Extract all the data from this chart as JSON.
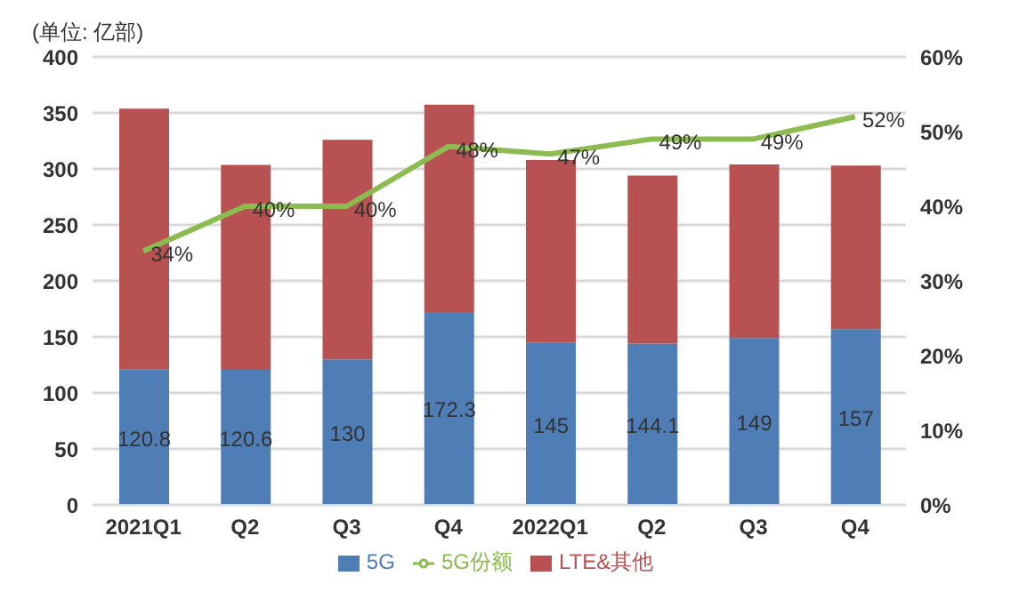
{
  "chart_data": {
    "type": "bar",
    "ylabel": "(单位: 亿部)",
    "categories": [
      "2021Q1",
      "Q2",
      "Q3",
      "Q4",
      "2022Q1",
      "Q2",
      "Q3",
      "Q4"
    ],
    "stacked": true,
    "series": [
      {
        "name": "5G",
        "color": "#4f7db5",
        "values": [
          120.8,
          120.6,
          130,
          172.3,
          145,
          144.1,
          149,
          157
        ],
        "value_labels": [
          "120.8",
          "120.6",
          "130",
          "172.3",
          "145",
          "144.1",
          "149",
          "157"
        ]
      },
      {
        "name": "LTE&其他",
        "color": "#b85152",
        "values": [
          233,
          183,
          196,
          185,
          163,
          150,
          155,
          146
        ]
      },
      {
        "name": "5G份额",
        "type": "line",
        "axis": "y2",
        "color": "#8cbb50",
        "values": [
          34,
          40,
          40,
          48,
          47,
          49,
          49,
          52
        ],
        "value_labels": [
          "34%",
          "40%",
          "40%",
          "48%",
          "47%",
          "49%",
          "49%",
          "52%"
        ]
      }
    ],
    "ylim": [
      0,
      400
    ],
    "yticks": [
      0,
      50,
      100,
      150,
      200,
      250,
      300,
      350,
      400
    ],
    "y2lim": [
      0,
      60
    ],
    "y2ticks": [
      {
        "value": 0,
        "label": "0%"
      },
      {
        "value": 10,
        "label": "10%"
      },
      {
        "value": 20,
        "label": "20%"
      },
      {
        "value": 30,
        "label": "30%"
      },
      {
        "value": 40,
        "label": "40%"
      },
      {
        "value": 50,
        "label": "50%"
      },
      {
        "value": 60,
        "label": "60%"
      }
    ],
    "grid": "y",
    "legend": "bottom",
    "marker": "none",
    "line_style": "solid"
  }
}
